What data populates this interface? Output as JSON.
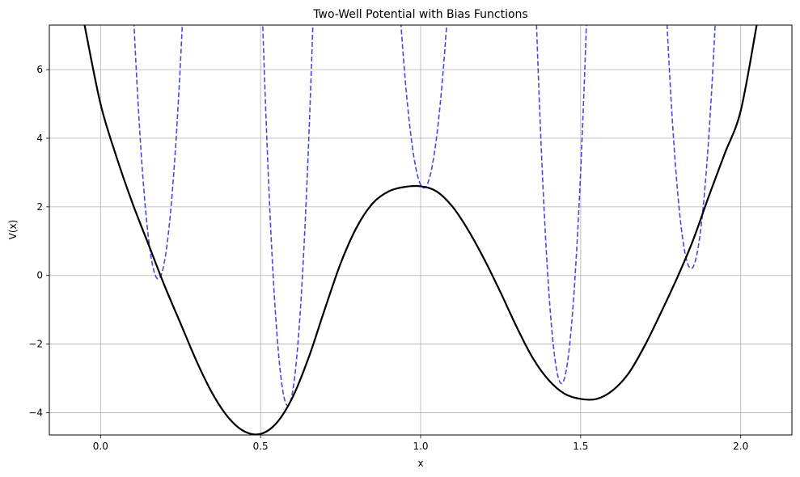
{
  "chart_data": {
    "type": "line",
    "title": "Two-Well Potential with Bias Functions",
    "xlabel": "x",
    "ylabel": "V(x)",
    "xlim": [
      -0.16,
      2.16
    ],
    "ylim": [
      -4.65,
      7.3
    ],
    "grid": true,
    "legend": "none",
    "x_ticks": [
      0.0,
      0.5,
      1.0,
      1.5,
      2.0
    ],
    "x_tick_labels": [
      "0.0",
      "0.5",
      "1.0",
      "1.5",
      "2.0"
    ],
    "y_ticks": [
      -4,
      -2,
      0,
      2,
      4,
      6
    ],
    "y_tick_labels": [
      "−4",
      "−2",
      "0",
      "2",
      "4",
      "6"
    ],
    "potential": {
      "style": "solid",
      "color": "#000000",
      "x": [
        -0.05,
        0.0,
        0.05,
        0.1,
        0.15,
        0.2,
        0.25,
        0.3,
        0.35,
        0.4,
        0.45,
        0.5,
        0.55,
        0.6,
        0.65,
        0.7,
        0.75,
        0.8,
        0.85,
        0.9,
        0.95,
        1.0,
        1.05,
        1.1,
        1.15,
        1.2,
        1.25,
        1.3,
        1.35,
        1.4,
        1.45,
        1.5,
        1.55,
        1.6,
        1.65,
        1.7,
        1.75,
        1.8,
        1.85,
        1.9,
        1.95,
        2.0,
        2.05
      ],
      "y": [
        7.3,
        5.0,
        3.45,
        2.1,
        0.9,
        -0.3,
        -1.4,
        -2.5,
        -3.45,
        -4.15,
        -4.55,
        -4.62,
        -4.3,
        -3.55,
        -2.4,
        -1.0,
        0.35,
        1.4,
        2.1,
        2.45,
        2.58,
        2.6,
        2.45,
        2.0,
        1.3,
        0.45,
        -0.5,
        -1.5,
        -2.4,
        -3.05,
        -3.45,
        -3.6,
        -3.6,
        -3.35,
        -2.85,
        -2.05,
        -1.1,
        -0.1,
        1.0,
        2.3,
        3.55,
        4.8,
        7.3
      ]
    },
    "bias_functions": [
      {
        "center": 0.18,
        "min_value": -0.1,
        "style": "dashed",
        "color": "#3333ee"
      },
      {
        "center": 0.585,
        "min_value": -3.8,
        "style": "dashed",
        "color": "#3333ee"
      },
      {
        "center": 1.01,
        "min_value": 2.55,
        "style": "dashed",
        "color": "#3333ee"
      },
      {
        "center": 1.44,
        "min_value": -3.15,
        "style": "dashed",
        "color": "#3333ee"
      },
      {
        "center": 1.845,
        "min_value": 0.2,
        "style": "dashed",
        "color": "#3333ee"
      }
    ],
    "bias_half_width_at_top": 0.085
  }
}
